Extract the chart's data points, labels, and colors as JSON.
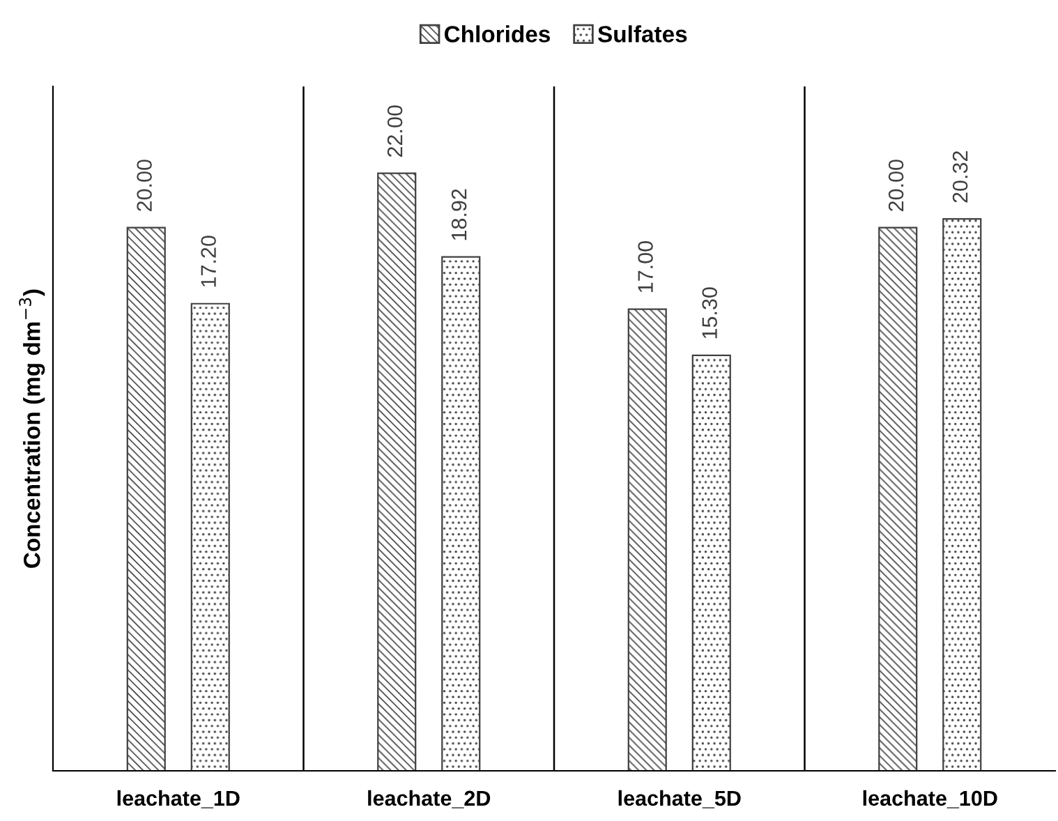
{
  "chart_data": {
    "type": "bar",
    "ylabel": "Concentration (mg dm$^{−3}$)",
    "categories": [
      "leachate_1D",
      "leachate_2D",
      "leachate_5D",
      "leachate_10D"
    ],
    "series": [
      {
        "name": "Chlorides",
        "color": "#404040",
        "values": [
          20.0,
          22.0,
          17.0,
          20.0
        ],
        "value_labels": [
          "20.00",
          "22.00",
          "17.00",
          "20.00"
        ]
      },
      {
        "name": "Sulfates",
        "color": "#404040",
        "values": [
          17.2,
          18.92,
          15.3,
          20.32
        ],
        "value_labels": [
          "17.20",
          "18.92",
          "15.30",
          "20.32"
        ]
      }
    ],
    "ylim": [
      0,
      25.2
    ],
    "grid": "x",
    "legend": "top",
    "tick_labels": "x"
  }
}
